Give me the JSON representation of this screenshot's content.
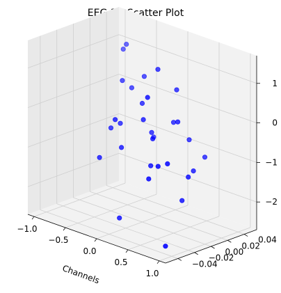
{
  "chart_data": {
    "type": "scatter",
    "title": "EEG 3D Scatter Plot",
    "xlabel": "Channels",
    "ylabel": "",
    "zlabel": "",
    "x_ticks": [
      "−1.0",
      "−0.5",
      "0.0",
      "0.5",
      "1.0"
    ],
    "y_ticks": [
      "−0.04",
      "−0.02",
      "0.00",
      "0.02",
      "0.04"
    ],
    "z_ticks": [
      "−2",
      "−1",
      "0",
      "1"
    ],
    "xlim": [
      -1.1,
      1.1
    ],
    "ylim": [
      -0.055,
      0.055
    ],
    "zlim": [
      -2.7,
      1.7
    ],
    "grid": true,
    "marker_color": "#0000ff",
    "points": [
      {
        "x": -0.7,
        "y": 0.03,
        "z": 1.05
      },
      {
        "x": -0.65,
        "y": 0.03,
        "z": 1.2
      },
      {
        "x": -0.45,
        "y": 0.01,
        "z": 0.55
      },
      {
        "x": -0.3,
        "y": 0.01,
        "z": 0.45
      },
      {
        "x": -0.5,
        "y": 0.0,
        "z": -0.6
      },
      {
        "x": -0.35,
        "y": 0.0,
        "z": -0.4
      },
      {
        "x": -0.3,
        "y": -0.01,
        "z": -0.2
      },
      {
        "x": -0.55,
        "y": -0.01,
        "z": -1.3
      },
      {
        "x": -0.2,
        "y": -0.01,
        "z": -0.85
      },
      {
        "x": -0.1,
        "y": -0.02,
        "z": -2.5
      },
      {
        "x": -0.1,
        "y": 0.01,
        "z": 0.85
      },
      {
        "x": 0.0,
        "y": 0.0,
        "z": 0.3
      },
      {
        "x": 0.05,
        "y": 0.01,
        "z": -0.6
      },
      {
        "x": 0.15,
        "y": 0.0,
        "z": -0.35
      },
      {
        "x": 0.25,
        "y": 0.0,
        "z": 1.3
      },
      {
        "x": 0.35,
        "y": -0.02,
        "z": 0.8
      },
      {
        "x": 0.15,
        "y": -0.01,
        "z": 0.05
      },
      {
        "x": 0.3,
        "y": -0.01,
        "z": -0.35
      },
      {
        "x": 0.5,
        "y": 0.0,
        "z": 0.1
      },
      {
        "x": 0.55,
        "y": 0.0,
        "z": 0.95
      },
      {
        "x": 0.4,
        "y": -0.02,
        "z": -0.9
      },
      {
        "x": 0.5,
        "y": -0.03,
        "z": -1.1
      },
      {
        "x": 0.7,
        "y": -0.01,
        "z": 0.3
      },
      {
        "x": 0.75,
        "y": 0.0,
        "z": -0.2
      },
      {
        "x": 0.65,
        "y": -0.03,
        "z": -0.7
      },
      {
        "x": 0.8,
        "y": -0.03,
        "z": -0.55
      },
      {
        "x": 0.95,
        "y": -0.01,
        "z": -0.8
      },
      {
        "x": 1.0,
        "y": 0.0,
        "z": -0.5
      },
      {
        "x": 1.0,
        "y": -0.02,
        "z": -0.85
      },
      {
        "x": 0.9,
        "y": -0.02,
        "z": -1.5
      },
      {
        "x": 0.9,
        "y": -0.04,
        "z": -2.5
      }
    ]
  }
}
